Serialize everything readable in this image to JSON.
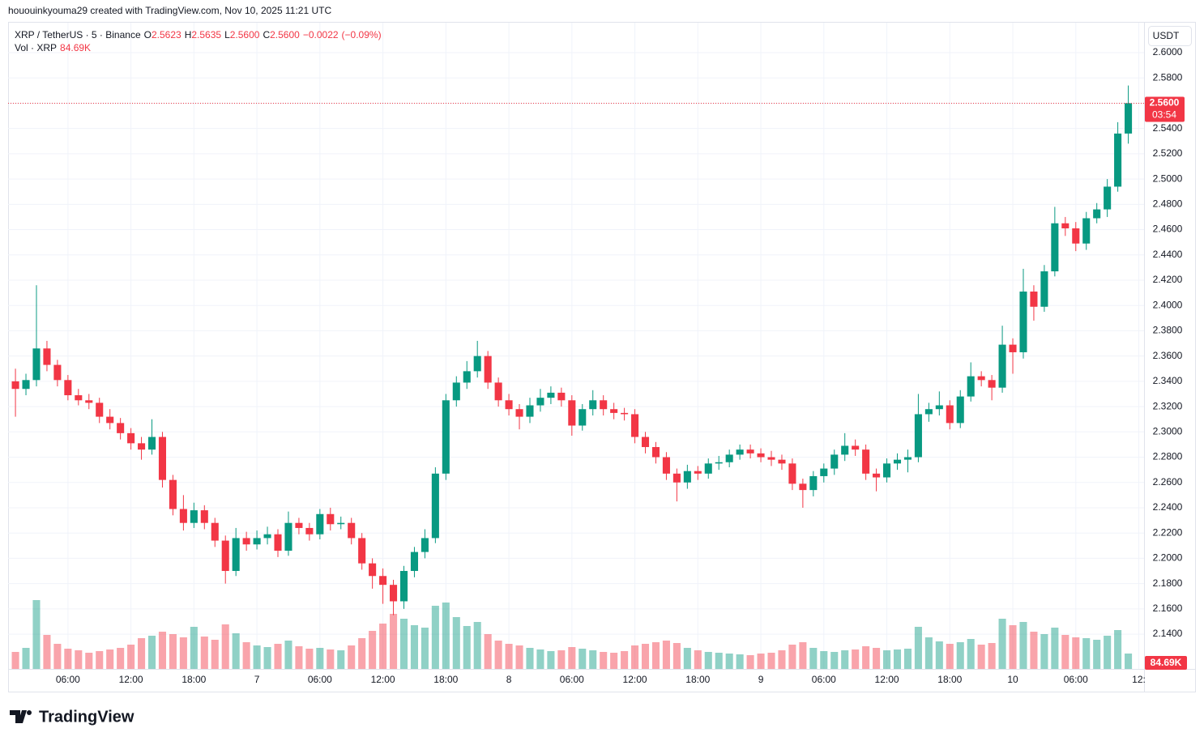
{
  "header": {
    "attribution": "hououinkyouma29 created with TradingView.com, Nov 10, 2025 11:21 UTC",
    "symbol": "XRP / TetherUS · 5 · Binance",
    "ohlc": [
      {
        "key": "O",
        "value": 2.5623,
        "label": "2.5623"
      },
      {
        "key": "H",
        "value": 2.5635,
        "label": "2.5635"
      },
      {
        "key": "L",
        "value": 2.56,
        "label": "2.5600"
      },
      {
        "key": "C",
        "value": 2.56,
        "label": "2.5600"
      }
    ],
    "change": {
      "value": -0.0022,
      "label": "−0.0022"
    },
    "change_percent": {
      "value": -0.09,
      "label": "(−0.09%)"
    },
    "volume_title": "Vol · XRP",
    "volume_last": {
      "value": 84690,
      "label": "84.69K"
    },
    "currency": "USDT",
    "countdown": "03:54"
  },
  "chart_data": {
    "type": "candlestick",
    "x": [
      "2025-11-06T01:00",
      "2025-11-06T02:00",
      "2025-11-06T03:00",
      "2025-11-06T04:00",
      "2025-11-06T05:00",
      "2025-11-06T06:00",
      "2025-11-06T07:00",
      "2025-11-06T08:00",
      "2025-11-06T09:00",
      "2025-11-06T10:00",
      "2025-11-06T11:00",
      "2025-11-06T12:00",
      "2025-11-06T13:00",
      "2025-11-06T14:00",
      "2025-11-06T15:00",
      "2025-11-06T16:00",
      "2025-11-06T17:00",
      "2025-11-06T18:00",
      "2025-11-06T19:00",
      "2025-11-06T20:00",
      "2025-11-06T21:00",
      "2025-11-06T22:00",
      "2025-11-06T23:00",
      "2025-11-07T00:00",
      "2025-11-07T01:00",
      "2025-11-07T02:00",
      "2025-11-07T03:00",
      "2025-11-07T04:00",
      "2025-11-07T05:00",
      "2025-11-07T06:00",
      "2025-11-07T07:00",
      "2025-11-07T08:00",
      "2025-11-07T09:00",
      "2025-11-07T10:00",
      "2025-11-07T11:00",
      "2025-11-07T12:00",
      "2025-11-07T13:00",
      "2025-11-07T14:00",
      "2025-11-07T15:00",
      "2025-11-07T16:00",
      "2025-11-07T17:00",
      "2025-11-07T18:00",
      "2025-11-07T19:00",
      "2025-11-07T20:00",
      "2025-11-07T21:00",
      "2025-11-07T22:00",
      "2025-11-07T23:00",
      "2025-11-08T00:00",
      "2025-11-08T01:00",
      "2025-11-08T02:00",
      "2025-11-08T03:00",
      "2025-11-08T04:00",
      "2025-11-08T05:00",
      "2025-11-08T06:00",
      "2025-11-08T07:00",
      "2025-11-08T08:00",
      "2025-11-08T09:00",
      "2025-11-08T10:00",
      "2025-11-08T11:00",
      "2025-11-08T12:00",
      "2025-11-08T13:00",
      "2025-11-08T14:00",
      "2025-11-08T15:00",
      "2025-11-08T16:00",
      "2025-11-08T17:00",
      "2025-11-08T18:00",
      "2025-11-08T19:00",
      "2025-11-08T20:00",
      "2025-11-08T21:00",
      "2025-11-08T22:00",
      "2025-11-08T23:00",
      "2025-11-09T00:00",
      "2025-11-09T01:00",
      "2025-11-09T02:00",
      "2025-11-09T03:00",
      "2025-11-09T04:00",
      "2025-11-09T05:00",
      "2025-11-09T06:00",
      "2025-11-09T07:00",
      "2025-11-09T08:00",
      "2025-11-09T09:00",
      "2025-11-09T10:00",
      "2025-11-09T11:00",
      "2025-11-09T12:00",
      "2025-11-09T13:00",
      "2025-11-09T14:00",
      "2025-11-09T15:00",
      "2025-11-09T16:00",
      "2025-11-09T17:00",
      "2025-11-09T18:00",
      "2025-11-09T19:00",
      "2025-11-09T20:00",
      "2025-11-09T21:00",
      "2025-11-09T22:00",
      "2025-11-09T23:00",
      "2025-11-10T00:00",
      "2025-11-10T01:00",
      "2025-11-10T02:00",
      "2025-11-10T03:00",
      "2025-11-10T04:00",
      "2025-11-10T05:00",
      "2025-11-10T06:00",
      "2025-11-10T07:00",
      "2025-11-10T08:00",
      "2025-11-10T09:00",
      "2025-11-10T10:00",
      "2025-11-10T11:00"
    ],
    "open": [
      2.34,
      2.334,
      2.341,
      2.366,
      2.353,
      2.341,
      2.329,
      2.325,
      2.323,
      2.312,
      2.307,
      2.299,
      2.291,
      2.286,
      2.296,
      2.262,
      2.239,
      2.228,
      2.238,
      2.228,
      2.214,
      2.19,
      2.216,
      2.211,
      2.216,
      2.219,
      2.206,
      2.228,
      2.224,
      2.219,
      2.235,
      2.227,
      2.228,
      2.216,
      2.196,
      2.186,
      2.179,
      2.166,
      2.19,
      2.205,
      2.216,
      2.267,
      2.325,
      2.339,
      2.348,
      2.36,
      2.339,
      2.325,
      2.318,
      2.312,
      2.321,
      2.327,
      2.331,
      2.325,
      2.305,
      2.318,
      2.325,
      2.318,
      2.315,
      2.314,
      2.296,
      2.288,
      2.28,
      2.267,
      2.26,
      2.269,
      2.267,
      2.275,
      2.276,
      2.282,
      2.286,
      2.283,
      2.28,
      2.278,
      2.275,
      2.259,
      2.254,
      2.265,
      2.271,
      2.282,
      2.289,
      2.286,
      2.267,
      2.264,
      2.275,
      2.278,
      2.28,
      2.314,
      2.318,
      2.321,
      2.307,
      2.328,
      2.344,
      2.341,
      2.335,
      2.369,
      2.363,
      2.411,
      2.399,
      2.427,
      2.465,
      2.461,
      2.449,
      2.469,
      2.476,
      2.494,
      2.536
    ],
    "high": [
      2.35,
      2.346,
      2.416,
      2.372,
      2.357,
      2.345,
      2.334,
      2.33,
      2.327,
      2.318,
      2.311,
      2.303,
      2.296,
      2.31,
      2.3,
      2.266,
      2.25,
      2.244,
      2.242,
      2.232,
      2.218,
      2.224,
      2.221,
      2.222,
      2.225,
      2.223,
      2.237,
      2.232,
      2.228,
      2.239,
      2.24,
      2.233,
      2.232,
      2.22,
      2.2,
      2.192,
      2.183,
      2.194,
      2.209,
      2.223,
      2.272,
      2.33,
      2.344,
      2.356,
      2.372,
      2.364,
      2.343,
      2.33,
      2.322,
      2.327,
      2.334,
      2.336,
      2.335,
      2.329,
      2.322,
      2.333,
      2.329,
      2.323,
      2.319,
      2.318,
      2.3,
      2.292,
      2.284,
      2.271,
      2.274,
      2.273,
      2.279,
      2.281,
      2.286,
      2.29,
      2.29,
      2.287,
      2.285,
      2.282,
      2.279,
      2.263,
      2.269,
      2.275,
      2.286,
      2.299,
      2.294,
      2.29,
      2.271,
      2.279,
      2.283,
      2.286,
      2.33,
      2.323,
      2.332,
      2.325,
      2.333,
      2.355,
      2.348,
      2.345,
      2.384,
      2.374,
      2.429,
      2.416,
      2.432,
      2.478,
      2.47,
      2.466,
      2.474,
      2.481,
      2.5,
      2.545,
      2.574
    ],
    "low": [
      2.312,
      2.329,
      2.336,
      2.348,
      2.336,
      2.325,
      2.321,
      2.318,
      2.307,
      2.302,
      2.294,
      2.286,
      2.278,
      2.282,
      2.256,
      2.234,
      2.222,
      2.224,
      2.223,
      2.209,
      2.18,
      2.186,
      2.206,
      2.207,
      2.211,
      2.201,
      2.202,
      2.219,
      2.214,
      2.215,
      2.222,
      2.223,
      2.211,
      2.191,
      2.176,
      2.164,
      2.155,
      2.16,
      2.185,
      2.2,
      2.212,
      2.262,
      2.32,
      2.334,
      2.343,
      2.334,
      2.32,
      2.313,
      2.302,
      2.307,
      2.316,
      2.322,
      2.32,
      2.297,
      2.301,
      2.313,
      2.313,
      2.31,
      2.309,
      2.291,
      2.283,
      2.275,
      2.262,
      2.245,
      2.255,
      2.262,
      2.263,
      2.27,
      2.272,
      2.278,
      2.279,
      2.276,
      2.273,
      2.27,
      2.254,
      2.24,
      2.249,
      2.26,
      2.266,
      2.277,
      2.281,
      2.262,
      2.253,
      2.26,
      2.27,
      2.268,
      2.276,
      2.308,
      2.313,
      2.302,
      2.303,
      2.324,
      2.336,
      2.325,
      2.331,
      2.346,
      2.358,
      2.388,
      2.395,
      2.423,
      2.455,
      2.443,
      2.444,
      2.465,
      2.47,
      2.49,
      2.528
    ],
    "close": [
      2.334,
      2.341,
      2.366,
      2.353,
      2.341,
      2.329,
      2.325,
      2.323,
      2.312,
      2.307,
      2.299,
      2.291,
      2.286,
      2.296,
      2.262,
      2.239,
      2.228,
      2.238,
      2.228,
      2.214,
      2.19,
      2.216,
      2.211,
      2.216,
      2.219,
      2.206,
      2.228,
      2.224,
      2.219,
      2.235,
      2.227,
      2.228,
      2.216,
      2.196,
      2.186,
      2.179,
      2.166,
      2.19,
      2.205,
      2.216,
      2.267,
      2.325,
      2.339,
      2.348,
      2.36,
      2.339,
      2.325,
      2.318,
      2.312,
      2.321,
      2.327,
      2.331,
      2.325,
      2.305,
      2.318,
      2.325,
      2.318,
      2.315,
      2.314,
      2.296,
      2.288,
      2.28,
      2.267,
      2.26,
      2.269,
      2.267,
      2.275,
      2.276,
      2.282,
      2.286,
      2.283,
      2.28,
      2.278,
      2.275,
      2.259,
      2.254,
      2.265,
      2.271,
      2.282,
      2.289,
      2.286,
      2.267,
      2.264,
      2.275,
      2.278,
      2.28,
      2.314,
      2.318,
      2.321,
      2.307,
      2.328,
      2.344,
      2.341,
      2.335,
      2.369,
      2.363,
      2.411,
      2.399,
      2.427,
      2.465,
      2.461,
      2.449,
      2.469,
      2.476,
      2.494,
      2.536,
      2.56
    ],
    "volume": [
      2100000,
      2600000,
      8500000,
      4200000,
      3100000,
      2500000,
      2300000,
      2000000,
      2200000,
      2400000,
      2600000,
      3000000,
      3800000,
      4100000,
      4600000,
      4300000,
      3900000,
      5200000,
      4000000,
      3600000,
      5500000,
      4400000,
      3300000,
      2900000,
      2700000,
      3100000,
      3500000,
      2800000,
      2500000,
      2600000,
      2400000,
      2300000,
      2900000,
      3800000,
      4700000,
      5600000,
      6800000,
      6200000,
      5400000,
      5100000,
      7800000,
      8200000,
      6400000,
      5300000,
      5800000,
      4300000,
      3500000,
      3100000,
      2900000,
      2600000,
      2400000,
      2200000,
      2300000,
      2700000,
      2500000,
      2300000,
      2100000,
      2000000,
      2200000,
      2900000,
      3100000,
      3300000,
      3500000,
      3200000,
      2600000,
      2300000,
      2100000,
      2000000,
      1900000,
      1800000,
      1700000,
      1900000,
      2000000,
      2300000,
      3000000,
      3300000,
      2600000,
      2200000,
      2100000,
      2300000,
      2400000,
      2800000,
      2600000,
      2300000,
      2400000,
      2500000,
      5200000,
      3900000,
      3400000,
      3100000,
      3300000,
      3700000,
      3000000,
      3200000,
      6200000,
      5400000,
      5800000,
      4600000,
      4300000,
      5100000,
      4200000,
      3900000,
      3800000,
      3600000,
      4100000,
      4800000,
      1900000
    ],
    "up_color": "#089981",
    "down_color": "#f23645",
    "xlim": [
      "2025-11-06T00:18",
      "2025-11-10T12:30"
    ],
    "ylim": [
      2.1125,
      2.6237
    ],
    "volume_ylim": [
      0,
      20000000
    ],
    "yticks": [
      {
        "value": 2.14,
        "label": "2.1400"
      },
      {
        "value": 2.16,
        "label": "2.1600"
      },
      {
        "value": 2.18,
        "label": "2.1800"
      },
      {
        "value": 2.2,
        "label": "2.2000"
      },
      {
        "value": 2.22,
        "label": "2.2200"
      },
      {
        "value": 2.24,
        "label": "2.2400"
      },
      {
        "value": 2.26,
        "label": "2.2600"
      },
      {
        "value": 2.28,
        "label": "2.2800"
      },
      {
        "value": 2.3,
        "label": "2.3000"
      },
      {
        "value": 2.32,
        "label": "2.3200"
      },
      {
        "value": 2.34,
        "label": "2.3400"
      },
      {
        "value": 2.36,
        "label": "2.3600"
      },
      {
        "value": 2.38,
        "label": "2.3800"
      },
      {
        "value": 2.4,
        "label": "2.4000"
      },
      {
        "value": 2.42,
        "label": "2.4200"
      },
      {
        "value": 2.44,
        "label": "2.4400"
      },
      {
        "value": 2.46,
        "label": "2.4600"
      },
      {
        "value": 2.48,
        "label": "2.4800"
      },
      {
        "value": 2.5,
        "label": "2.5000"
      },
      {
        "value": 2.52,
        "label": "2.5200"
      },
      {
        "value": 2.54,
        "label": "2.5400"
      },
      {
        "value": 2.56,
        "label": "2.5600"
      },
      {
        "value": 2.58,
        "label": "2.5800"
      },
      {
        "value": 2.6,
        "label": "2.6000"
      }
    ],
    "xticks": [
      {
        "value": "2025-11-06T06:00",
        "label": "06:00"
      },
      {
        "value": "2025-11-06T12:00",
        "label": "12:00"
      },
      {
        "value": "2025-11-06T18:00",
        "label": "18:00"
      },
      {
        "value": "2025-11-07T00:00",
        "label": "7"
      },
      {
        "value": "2025-11-07T06:00",
        "label": "06:00"
      },
      {
        "value": "2025-11-07T12:00",
        "label": "12:00"
      },
      {
        "value": "2025-11-07T18:00",
        "label": "18:00"
      },
      {
        "value": "2025-11-08T00:00",
        "label": "8"
      },
      {
        "value": "2025-11-08T06:00",
        "label": "06:00"
      },
      {
        "value": "2025-11-08T12:00",
        "label": "12:00"
      },
      {
        "value": "2025-11-08T18:00",
        "label": "18:00"
      },
      {
        "value": "2025-11-09T00:00",
        "label": "9"
      },
      {
        "value": "2025-11-09T06:00",
        "label": "06:00"
      },
      {
        "value": "2025-11-09T12:00",
        "label": "12:00"
      },
      {
        "value": "2025-11-09T18:00",
        "label": "18:00"
      },
      {
        "value": "2025-11-10T00:00",
        "label": "10"
      },
      {
        "value": "2025-11-10T06:00",
        "label": "06:00"
      },
      {
        "value": "2025-11-10T12:00",
        "label": "12:"
      }
    ],
    "grid": true
  },
  "footer": {
    "logo": "TradingView"
  }
}
